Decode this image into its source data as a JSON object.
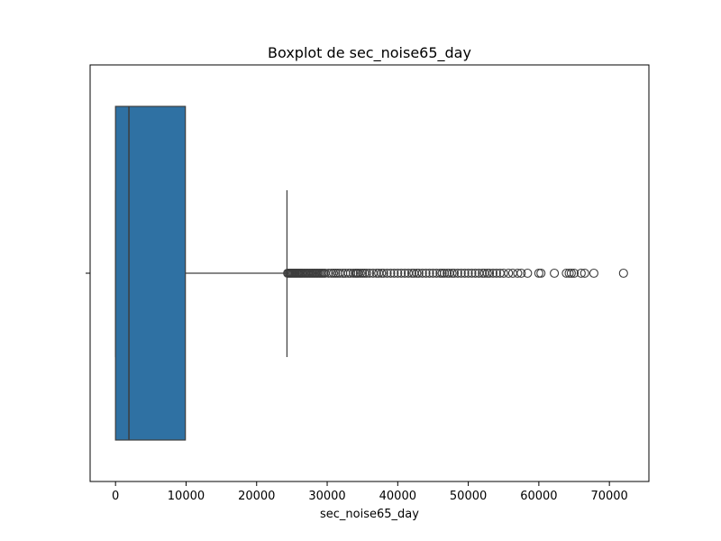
{
  "chart_data": {
    "type": "boxplot",
    "title": "Boxplot de sec_noise65_day",
    "xlabel": "sec_noise65_day",
    "ylabel": "",
    "xlim": [
      -3600,
      75600
    ],
    "xticks": [
      0,
      10000,
      20000,
      30000,
      40000,
      50000,
      60000,
      70000
    ],
    "xtick_labels": [
      "0",
      "10000",
      "20000",
      "30000",
      "40000",
      "50000",
      "60000",
      "70000"
    ],
    "box": {
      "min": 0,
      "q1": 0,
      "median": 1900,
      "q3": 9900,
      "whisker_low": 0,
      "whisker_high": 24300
    },
    "box_color": "#2f71a3",
    "outliers": [
      24400,
      24550,
      24700,
      24850,
      25000,
      25150,
      25300,
      25450,
      25600,
      25750,
      25900,
      26050,
      26200,
      26350,
      26500,
      26700,
      26900,
      27100,
      27300,
      27500,
      27700,
      27900,
      28100,
      28300,
      28500,
      28700,
      28900,
      29100,
      29300,
      29500,
      29700,
      30200,
      30600,
      30900,
      31200,
      31500,
      31800,
      32200,
      32600,
      33000,
      33300,
      33700,
      34000,
      34200,
      34400,
      34700,
      35000,
      35300,
      35600,
      36000,
      36500,
      37000,
      37300,
      37700,
      38000,
      38500,
      39000,
      39500,
      40000,
      40500,
      41000,
      41500,
      42000,
      42300,
      42700,
      43000,
      43500,
      44000,
      44500,
      45000,
      45500,
      46000,
      46300,
      46600,
      47000,
      47300,
      47700,
      48000,
      48500,
      49000,
      49500,
      50000,
      50500,
      51000,
      51500,
      52000,
      52300,
      52700,
      53000,
      53500,
      54000,
      54500,
      55000,
      55700,
      56300,
      57000,
      57500,
      58400,
      60000,
      60300,
      62200,
      63900,
      64300,
      64600,
      65000,
      66000,
      66500,
      67800,
      72000
    ]
  }
}
